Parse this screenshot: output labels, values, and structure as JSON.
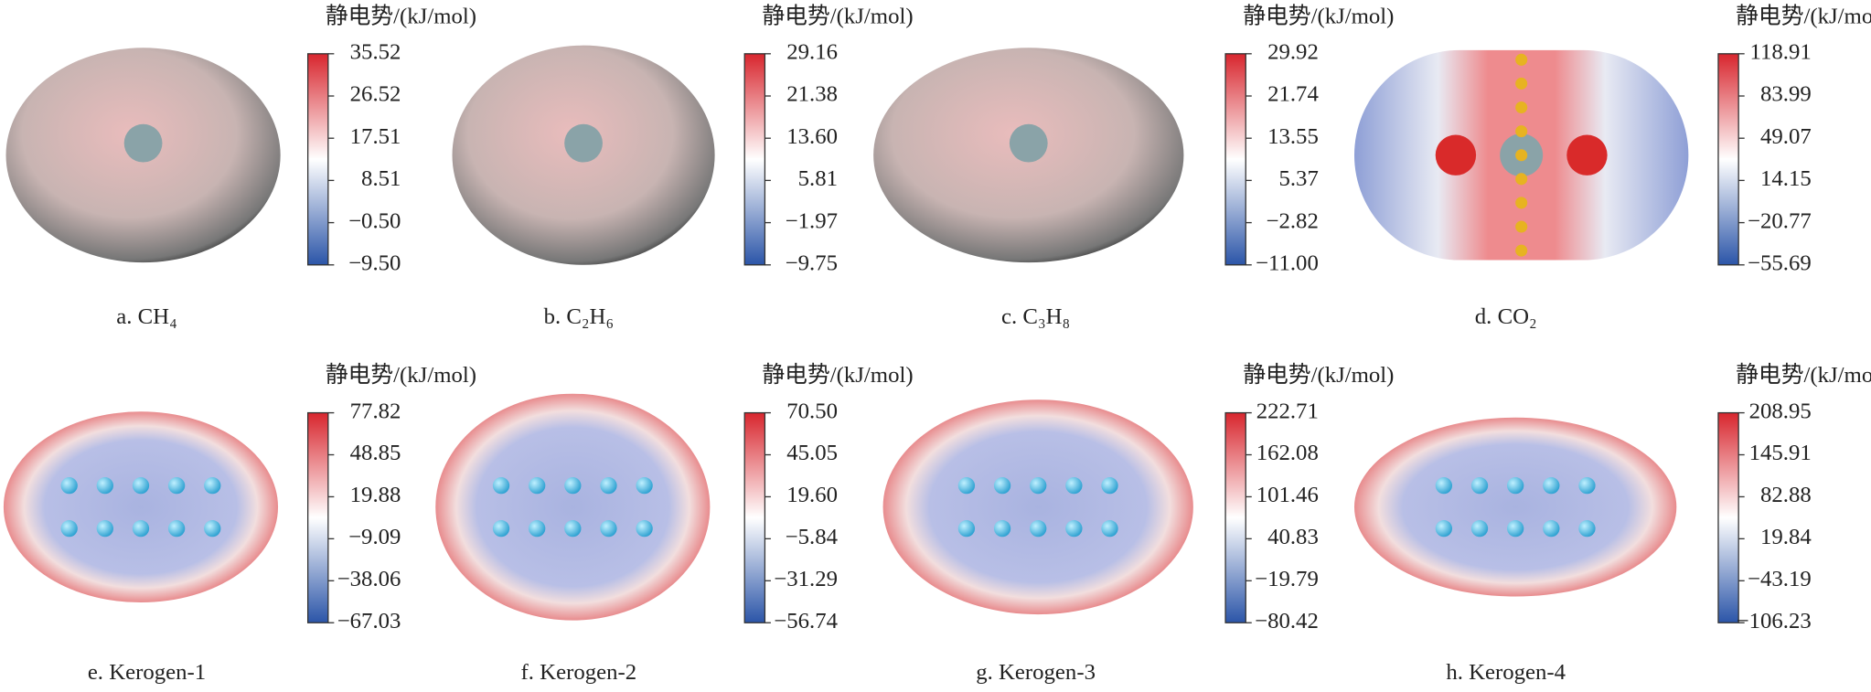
{
  "panels": [
    {
      "caption": "a. CH₄",
      "title": "静电势/(kJ/mol)",
      "ticks": [
        "35.52",
        "26.52",
        "17.51",
        "8.51",
        "−0.50",
        "−9.50"
      ]
    },
    {
      "caption": "b. C₂H₆",
      "title": "静电势/(kJ/mol)",
      "ticks": [
        "29.16",
        "21.38",
        "13.60",
        "5.81",
        "−1.97",
        "−9.75"
      ]
    },
    {
      "caption": "c. C₃H₈",
      "title": "静电势/(kJ/mol)",
      "ticks": [
        "29.92",
        "21.74",
        "13.55",
        "5.37",
        "−2.82",
        "−11.00"
      ]
    },
    {
      "caption": "d. CO₂",
      "title": "静电势/(kJ/mol)",
      "ticks": [
        "118.91",
        "83.99",
        "49.07",
        "14.15",
        "−20.77",
        "−55.69"
      ]
    },
    {
      "caption": "e. Kerogen-1",
      "title": "静电势/(kJ/mol)",
      "ticks": [
        "77.82",
        "48.85",
        "19.88",
        "−9.09",
        "−38.06",
        "−67.03"
      ]
    },
    {
      "caption": "f. Kerogen-2",
      "title": "静电势/(kJ/mol)",
      "ticks": [
        "70.50",
        "45.05",
        "19.60",
        "−5.84",
        "−31.29",
        "−56.74"
      ]
    },
    {
      "caption": "g. Kerogen-3",
      "title": "静电势/(kJ/mol)",
      "ticks": [
        "222.71",
        "162.08",
        "101.46",
        "40.83",
        "−19.79",
        "−80.42"
      ]
    },
    {
      "caption": "h. Kerogen-4",
      "title": "静电势/(kJ/mol)",
      "ticks": [
        "208.95",
        "145.91",
        "82.88",
        "19.84",
        "−43.19",
        "−106.23"
      ]
    }
  ]
}
